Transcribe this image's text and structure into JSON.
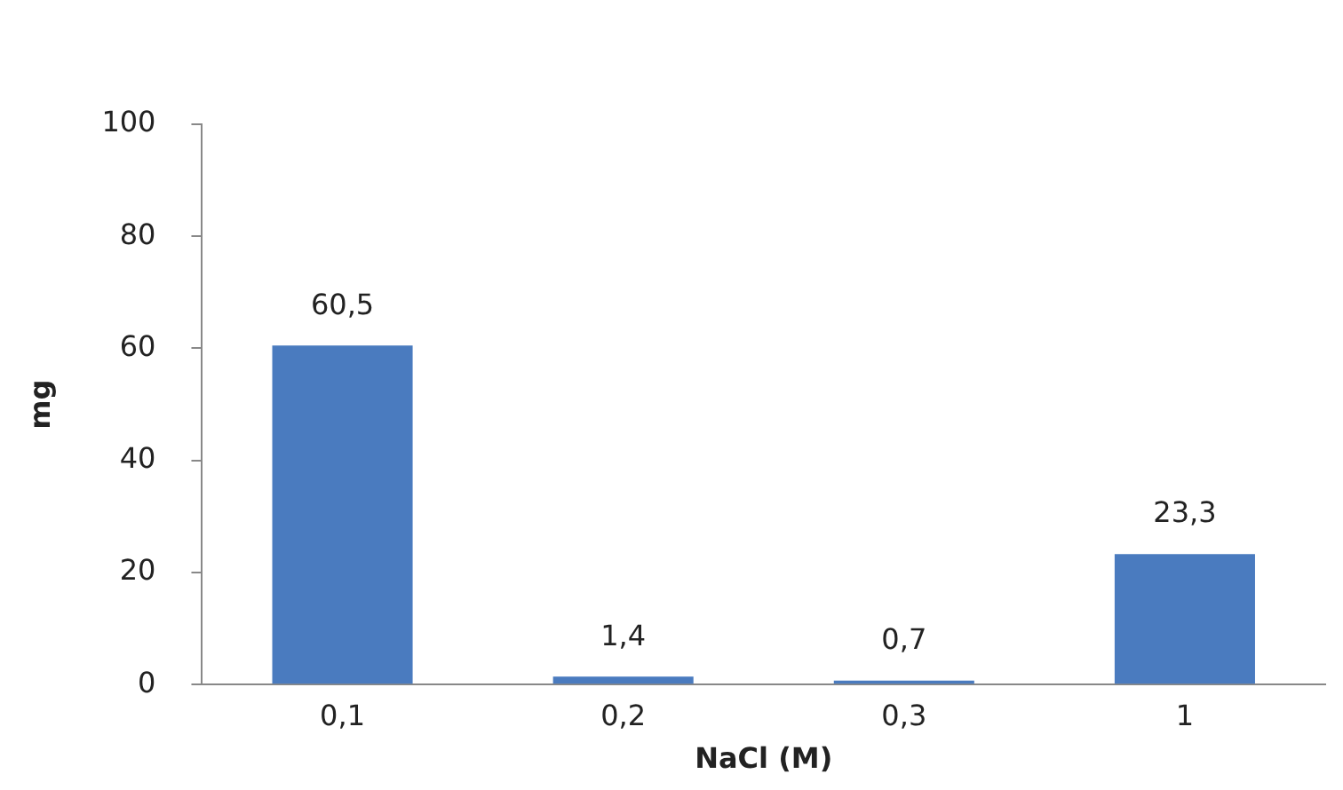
{
  "chart_data": {
    "type": "bar",
    "xlabel": "NaCl (M)",
    "ylabel": "mg",
    "categories": [
      "0,1",
      "0,2",
      "0,3",
      "1"
    ],
    "values": [
      60.5,
      1.4,
      0.7,
      23.3
    ],
    "value_labels": [
      "60,5",
      "1,4",
      "0,7",
      "23,3"
    ],
    "color": "#4a7bbf",
    "ylim": [
      0,
      100
    ],
    "yticks": [
      0,
      20,
      40,
      60,
      80,
      100
    ],
    "grid": false,
    "legend": false
  }
}
